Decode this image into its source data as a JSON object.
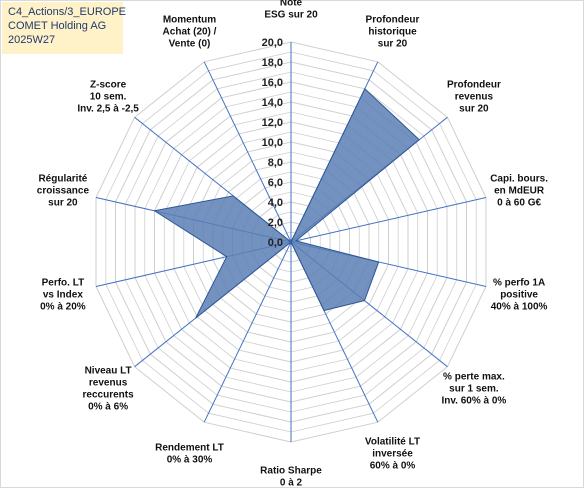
{
  "header": {
    "line1": "C4_Actions/3_EUROPE",
    "line2": "COMET Holding AG",
    "line3": "2025W27"
  },
  "colors": {
    "series_fill": "#5a7fb5",
    "series_stroke": "#2f5597",
    "axis_line": "#4472c4",
    "grid": "#cfcfcf",
    "header_bg": "#fff2c8"
  },
  "chart_data": {
    "type": "radar",
    "rlim": [
      0,
      20
    ],
    "ticks": [
      "0,0",
      "2,0",
      "4,0",
      "6,0",
      "8,0",
      "10,0",
      "12,0",
      "14,0",
      "16,0",
      "18,0",
      "20,0"
    ],
    "grid": true,
    "axes": [
      {
        "label": [
          "Note",
          "ESG sur 20"
        ],
        "value": 0
      },
      {
        "label": [
          "Profondeur",
          "historique",
          "sur 20"
        ],
        "value": 17
      },
      {
        "label": [
          "Profondeur",
          "revenus",
          "sur 20"
        ],
        "value": 16.4
      },
      {
        "label": [
          "Capi. bours.",
          "en MdEUR",
          "0 à 60 G€"
        ],
        "value": 0.5
      },
      {
        "label": [
          "% perfo 1A",
          "positive",
          "40% à 100%"
        ],
        "value": 9
      },
      {
        "label": [
          "% perte max.",
          "sur 1 sem.",
          "Inv. 60% à 0%"
        ],
        "value": 9.4
      },
      {
        "label": [
          "Volatilité LT",
          "inversée",
          "60% à 0%"
        ],
        "value": 7.6
      },
      {
        "label": [
          "Ratio Sharpe",
          "0 à 2"
        ],
        "value": 0
      },
      {
        "label": [
          "Rendement LT",
          "0% à 30%"
        ],
        "value": 0
      },
      {
        "label": [
          "Niveau LT",
          "revenus",
          "reccurents",
          "0% à 6%"
        ],
        "value": 12.2
      },
      {
        "label": [
          "Perfo. LT",
          "vs Index",
          "0% à 20%"
        ],
        "value": 6.6
      },
      {
        "label": [
          "Régularité",
          "croissance",
          "sur 20"
        ],
        "value": 14
      },
      {
        "label": [
          "Z-score",
          "10 sem.",
          "Inv. 2,5 à -2,5"
        ],
        "value": 7.4
      },
      {
        "label": [
          "Momentum",
          "Achat (20) /",
          "Vente (0)"
        ],
        "value": 0
      }
    ]
  }
}
